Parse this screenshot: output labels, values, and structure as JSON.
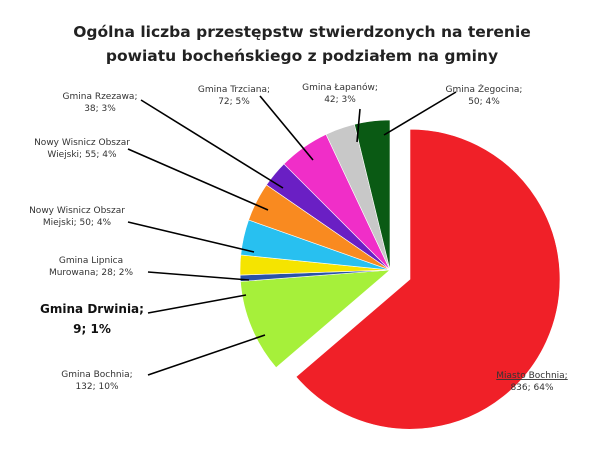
{
  "chart_data": {
    "type": "pie",
    "title_lines": [
      "Ogólna liczba przestępstw stwierdzonych na terenie",
      "powiatu bocheńskiego  z  podziałem na gminy"
    ],
    "slices": [
      {
        "name": "Miasto Bochnia",
        "label_lines": [
          "Miasto Bochnia;",
          "836; 64%"
        ],
        "value": 836,
        "percent": "64%",
        "color": "#f02028"
      },
      {
        "name": "Gmina Bochnia",
        "label_lines": [
          "Gmina Bochnia;",
          "132; 10%"
        ],
        "value": 132,
        "percent": "10%",
        "color": "#a6f03a"
      },
      {
        "name": "Gmina Drwinia",
        "label_lines": [
          "Gmina Drwinia;",
          "9; 1%"
        ],
        "value": 9,
        "percent": "1%",
        "color": "#2a52a8"
      },
      {
        "name": "Gmina Lipnica Murowana",
        "label_lines": [
          "Gmina Lipnica",
          "Murowana; 28; 2%"
        ],
        "value": 28,
        "percent": "2%",
        "color": "#f5e400"
      },
      {
        "name": "Nowy Wiśnicz Obszar Miejski",
        "label_lines": [
          "Nowy Wisnicz Obszar",
          "Miejski; 50; 4%"
        ],
        "value": 50,
        "percent": "4%",
        "color": "#28c0f0"
      },
      {
        "name": "Nowy Wiśnicz Obszar Wiejski",
        "label_lines": [
          "Nowy Wisnicz Obszar",
          "Wiejski; 55; 4%"
        ],
        "value": 55,
        "percent": "4%",
        "color": "#f98a20"
      },
      {
        "name": "Gmina Rzezawa",
        "label_lines": [
          "Gmina Rzezawa;",
          "38; 3%"
        ],
        "value": 38,
        "percent": "3%",
        "color": "#6a1fc4"
      },
      {
        "name": "Gmina Trzciana",
        "label_lines": [
          "Gmina Trzciana;",
          "72; 5%"
        ],
        "value": 72,
        "percent": "5%",
        "color": "#f02ec8"
      },
      {
        "name": "Gmina Łapanów",
        "label_lines": [
          "Gmina Łapanów;",
          "42; 3%"
        ],
        "value": 42,
        "percent": "3%",
        "color": "#c8c8c8"
      },
      {
        "name": "Gmina Żegocina",
        "label_lines": [
          "Gmina Żegocina;",
          "50; 4%"
        ],
        "value": 50,
        "percent": "4%",
        "color": "#0a5a14"
      }
    ],
    "start_angle_deg": 90,
    "direction": "clockwise",
    "exploded_slice": "Miasto Bochnia",
    "emphasized_label": "Gmina Drwinia",
    "legend": "none"
  }
}
